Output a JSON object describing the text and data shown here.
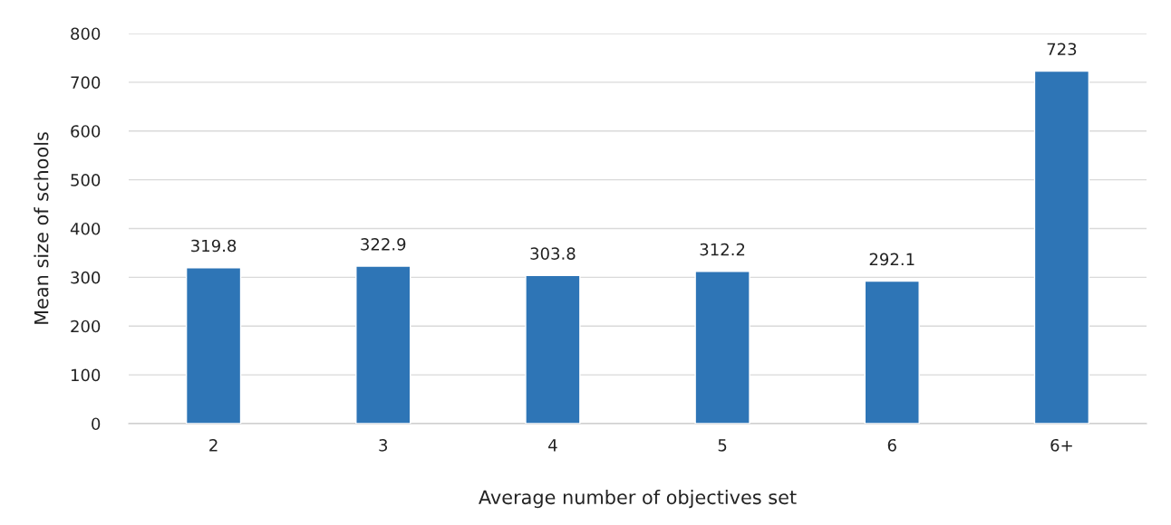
{
  "chart_data": {
    "type": "bar",
    "xlabel": "Average number of objectives set",
    "ylabel": "Mean size of schools",
    "categories": [
      "2",
      "3",
      "4",
      "5",
      "6",
      "6+"
    ],
    "values": [
      319.8,
      322.9,
      303.8,
      312.2,
      292.1,
      723
    ],
    "color": "#2e75b6",
    "data_labels": true,
    "ylim": [
      0,
      800
    ],
    "yticks": [
      0,
      100,
      200,
      300,
      400,
      500,
      600,
      700,
      800
    ],
    "grid": "y"
  }
}
